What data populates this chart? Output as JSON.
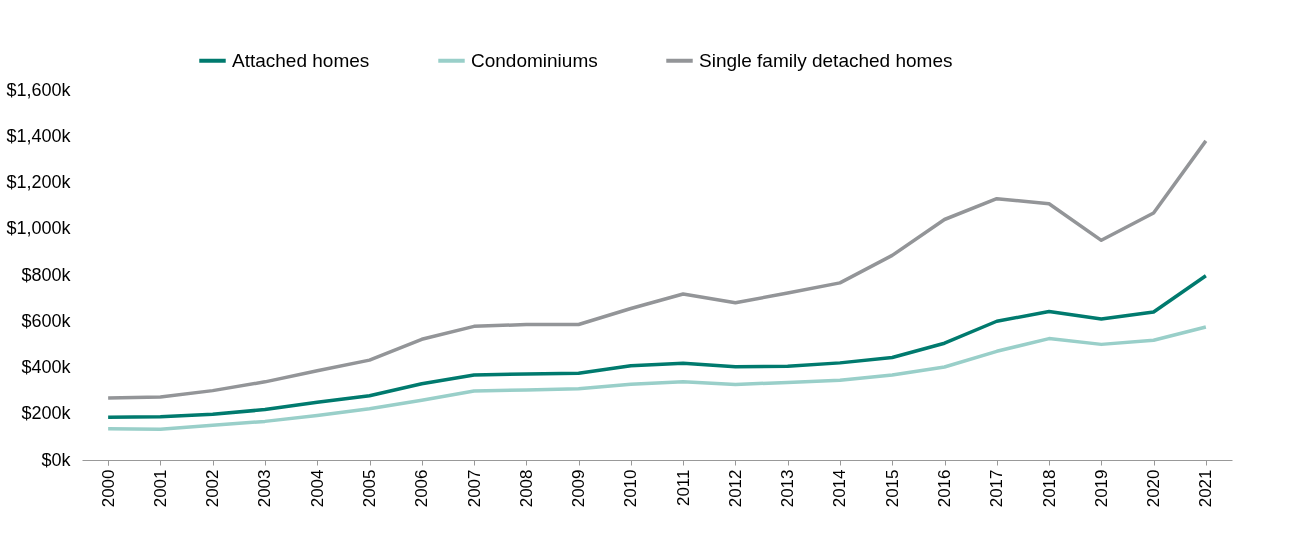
{
  "chart_data": {
    "type": "line",
    "categories": [
      "2000",
      "2001",
      "2002",
      "2003",
      "2004",
      "2005",
      "2006",
      "2007",
      "2008",
      "2009",
      "2010",
      "2011",
      "2012",
      "2013",
      "2014",
      "2015",
      "2016",
      "2017",
      "2018",
      "2019",
      "2020",
      "2021"
    ],
    "series": [
      {
        "name": "Attached homes",
        "color": "#007a6e",
        "values": [
          185,
          187,
          198,
          218,
          250,
          278,
          330,
          368,
          372,
          375,
          408,
          418,
          403,
          405,
          420,
          443,
          505,
          600,
          642,
          610,
          640,
          797
        ]
      },
      {
        "name": "Condominiums",
        "color": "#99cfc9",
        "values": [
          135,
          133,
          150,
          167,
          192,
          222,
          258,
          298,
          303,
          308,
          328,
          338,
          327,
          335,
          345,
          368,
          402,
          470,
          525,
          500,
          518,
          575
        ]
      },
      {
        "name": "Single family detached homes",
        "color": "#939598",
        "values": [
          268,
          272,
          300,
          338,
          386,
          432,
          522,
          578,
          586,
          586,
          655,
          718,
          680,
          722,
          766,
          885,
          1040,
          1130,
          1108,
          950,
          1068,
          1380
        ]
      }
    ],
    "ylim": [
      0,
      1600
    ],
    "yticks": [
      {
        "value": 0,
        "label": "$0k"
      },
      {
        "value": 200,
        "label": "$200k"
      },
      {
        "value": 400,
        "label": "$400k"
      },
      {
        "value": 600,
        "label": "$600k"
      },
      {
        "value": 800,
        "label": "$800k"
      },
      {
        "value": 1000,
        "label": "$1,000k"
      },
      {
        "value": 1200,
        "label": "$1,200k"
      },
      {
        "value": 1400,
        "label": "$1,400k"
      },
      {
        "value": 1600,
        "label": "$1,600k"
      }
    ],
    "grid": false,
    "legend": "top",
    "marker": "none",
    "line_style": "solid"
  }
}
